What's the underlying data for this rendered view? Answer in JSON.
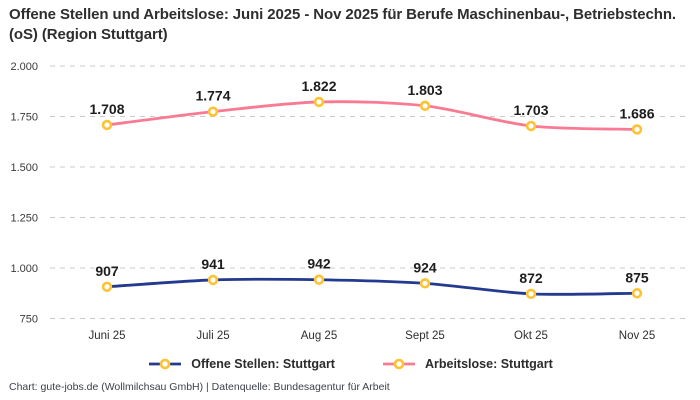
{
  "title": "Offene Stellen und Arbeitslose: Juni 2025 - Nov 2025 für Berufe Maschinenbau-, Betriebstechn.(oS) (Region Stuttgart)",
  "footer": "Chart: gute-jobs.de (Wollmilchsau GmbH) | Datenquelle: Bundesagentur für Arbeit",
  "colors": {
    "background": "#ffffff",
    "grid": "#cbcbcb",
    "tick_text": "#3a3a3a",
    "data_label_text": "#1d1d1d",
    "title_text": "#2e2e2e",
    "footer_text": "#3c414b"
  },
  "chart_data": {
    "type": "line",
    "title": "Offene Stellen und Arbeitslose: Juni 2025 - Nov 2025 für Berufe Maschinenbau-, Betriebstechn.(oS) (Region Stuttgart)",
    "categories": [
      "Juni 25",
      "Juli 25",
      "Aug 25",
      "Sept 25",
      "Okt 25",
      "Nov 25"
    ],
    "series": [
      {
        "name": "Offene Stellen: Stuttgart",
        "color": "#233a8f",
        "values": [
          907,
          941,
          942,
          924,
          872,
          875
        ],
        "labels": [
          "907",
          "941",
          "942",
          "924",
          "872",
          "875"
        ]
      },
      {
        "name": "Arbeitslose: Stuttgart",
        "color": "#f97b93",
        "values": [
          1708,
          1774,
          1822,
          1803,
          1703,
          1686
        ],
        "labels": [
          "1.708",
          "1.774",
          "1.822",
          "1.803",
          "1.703",
          "1.686"
        ]
      }
    ],
    "marker_color": "#fec233",
    "marker_fill": "#ffffff",
    "ylim": [
      750,
      2000
    ],
    "yticks": [
      2000,
      1750,
      1500,
      1250,
      1000,
      750
    ],
    "ytick_labels": [
      "2.000",
      "1.750",
      "1.500",
      "1.250",
      "1.000",
      "750"
    ],
    "grid": "horizontal-dashed",
    "legend_position": "bottom",
    "xlabel": "",
    "ylabel": ""
  }
}
